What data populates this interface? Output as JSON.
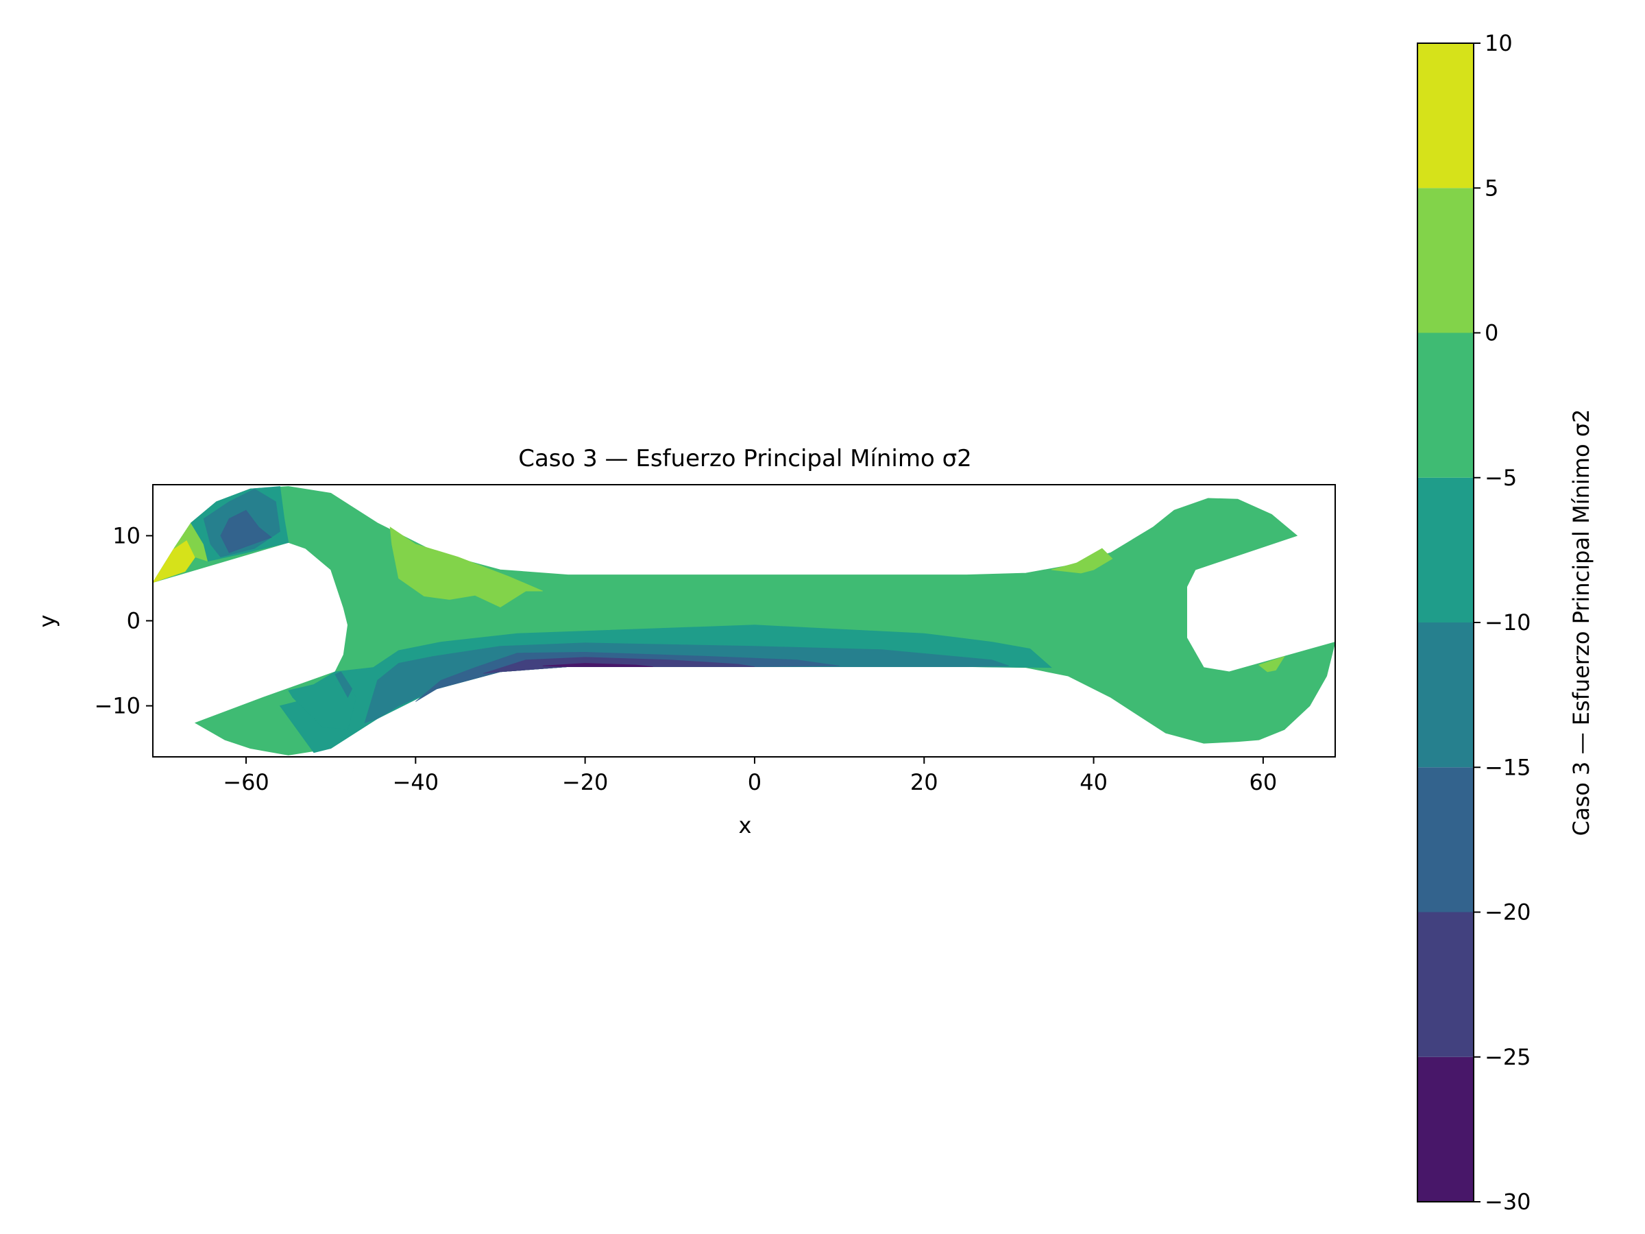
{
  "chart_data": {
    "type": "contourf",
    "title": "Caso 3 — Esfuerzo Principal Mínimo σ2",
    "xlabel": "x",
    "ylabel": "y",
    "xlim": [
      -71,
      68.5
    ],
    "ylim": [
      -16,
      16
    ],
    "xticks": [
      -60,
      -40,
      -20,
      0,
      20,
      40,
      60
    ],
    "xtick_labels": [
      "−60",
      "−40",
      "−20",
      "0",
      "20",
      "40",
      "60"
    ],
    "yticks": [
      10,
      0,
      -10
    ],
    "ytick_labels": [
      "10",
      "0",
      "−10"
    ],
    "grid": false,
    "colorbar": {
      "label": "Caso 3 — Esfuerzo Principal Mínimo σ2",
      "levels": [
        -30,
        -25,
        -20,
        -15,
        -10,
        -5,
        0,
        5,
        10
      ],
      "tick_labels": [
        "−30",
        "−25",
        "−20",
        "−15",
        "−10",
        "−5",
        "0",
        "5",
        "10"
      ],
      "colors": [
        "#481769",
        "#42417f",
        "#33638d",
        "#26808e",
        "#1f9d8a",
        "#3fbb73",
        "#82d34a",
        "#d6e21a"
      ]
    },
    "regions": [
      {
        "name": "body",
        "level_band": [
          -5,
          0
        ],
        "color": "#3fbb73",
        "outline": [
          [
            -71,
            4.5
          ],
          [
            -68.5,
            8.5
          ],
          [
            -66.5,
            11.5
          ],
          [
            -63.5,
            14
          ],
          [
            -59.5,
            15.5
          ],
          [
            -55,
            15.8
          ],
          [
            -50,
            15
          ],
          [
            -44.5,
            11.5
          ],
          [
            -37.5,
            8
          ],
          [
            -30,
            6
          ],
          [
            -22,
            5.4
          ],
          [
            0,
            5.4
          ],
          [
            25,
            5.4
          ],
          [
            32,
            5.6
          ],
          [
            37,
            6.5
          ],
          [
            42,
            8
          ],
          [
            47,
            11
          ],
          [
            49.5,
            13
          ],
          [
            53.5,
            14.4
          ],
          [
            57,
            14.3
          ],
          [
            61,
            12.5
          ],
          [
            64,
            10
          ],
          [
            52,
            6
          ],
          [
            51,
            4
          ],
          [
            51,
            -2
          ],
          [
            53,
            -5.5
          ],
          [
            56,
            -6
          ],
          [
            68.5,
            -2.5
          ],
          [
            67.5,
            -6.5
          ],
          [
            65.5,
            -10
          ],
          [
            62.5,
            -12.8
          ],
          [
            59.5,
            -14
          ],
          [
            57,
            -14.2
          ],
          [
            53,
            -14.4
          ],
          [
            48.5,
            -13.2
          ],
          [
            42,
            -9
          ],
          [
            37,
            -6.5
          ],
          [
            32,
            -5.5
          ],
          [
            25,
            -5.4
          ],
          [
            0,
            -5.4
          ],
          [
            -22,
            -5.4
          ],
          [
            -30,
            -6
          ],
          [
            -37.5,
            -8
          ],
          [
            -44.5,
            -11.5
          ],
          [
            -50,
            -15
          ],
          [
            -55,
            -15.8
          ],
          [
            -59.5,
            -15
          ],
          [
            -62.5,
            -14
          ],
          [
            -66,
            -12
          ],
          [
            -58,
            -9
          ],
          [
            -49.5,
            -6
          ],
          [
            -48.5,
            -4
          ],
          [
            -48,
            -0.5
          ],
          [
            -48.5,
            1.5
          ],
          [
            -50,
            6
          ],
          [
            -53,
            8.5
          ],
          [
            -55,
            9.2
          ]
        ]
      },
      {
        "name": "band -10 to -5 bottom",
        "level_band": [
          -10,
          -5
        ],
        "color": "#1f9d8a",
        "outline": [
          [
            -49.5,
            -6
          ],
          [
            -45,
            -5.5
          ],
          [
            -42,
            -3.5
          ],
          [
            -37,
            -2.5
          ],
          [
            -28,
            -1.5
          ],
          [
            0,
            -0.5
          ],
          [
            20,
            -1.5
          ],
          [
            28,
            -2.5
          ],
          [
            32.5,
            -3.3
          ],
          [
            35,
            -5.5
          ],
          [
            25,
            -5.4
          ],
          [
            0,
            -5.4
          ],
          [
            -22,
            -5.4
          ],
          [
            -30,
            -6
          ],
          [
            -37.5,
            -8
          ],
          [
            -44.5,
            -11.5
          ],
          [
            -50,
            -15
          ],
          [
            -52,
            -15.5
          ],
          [
            -56,
            -10
          ],
          [
            -52,
            -9
          ]
        ]
      },
      {
        "name": "band -15 to -10 bottom",
        "level_band": [
          -15,
          -10
        ],
        "color": "#26808e",
        "outline": [
          [
            -46,
            -12
          ],
          [
            -44.5,
            -7
          ],
          [
            -42,
            -5
          ],
          [
            -38,
            -4.2
          ],
          [
            -30,
            -3
          ],
          [
            -20,
            -2.6
          ],
          [
            0,
            -3
          ],
          [
            15,
            -3.4
          ],
          [
            28,
            -4.6
          ],
          [
            30,
            -5.3
          ],
          [
            25,
            -5.4
          ],
          [
            0,
            -5.4
          ],
          [
            -22,
            -5.4
          ],
          [
            -30,
            -6
          ],
          [
            -37.5,
            -8
          ],
          [
            -42,
            -10
          ],
          [
            -44.5,
            -11.5
          ]
        ]
      },
      {
        "name": "band -20 to -15 bottom",
        "level_band": [
          -20,
          -15
        ],
        "color": "#33638d",
        "outline": [
          [
            -40,
            -9.5
          ],
          [
            -37,
            -7
          ],
          [
            -33,
            -5.5
          ],
          [
            -28,
            -3.8
          ],
          [
            -20,
            -3.7
          ],
          [
            -5,
            -4.2
          ],
          [
            5,
            -4.6
          ],
          [
            10,
            -5.3
          ],
          [
            0,
            -5.4
          ],
          [
            -22,
            -5.4
          ],
          [
            -30,
            -6
          ],
          [
            -37.5,
            -8
          ]
        ]
      },
      {
        "name": "band -25 to -20 bottom",
        "level_band": [
          -25,
          -20
        ],
        "color": "#42417f",
        "outline": [
          [
            -32,
            -6.2
          ],
          [
            -27,
            -4.6
          ],
          [
            -20,
            -4.3
          ],
          [
            -10,
            -4.6
          ],
          [
            -2,
            -5.1
          ],
          [
            0,
            -5.4
          ],
          [
            -22,
            -5.4
          ],
          [
            -30,
            -6
          ]
        ]
      },
      {
        "name": "band -30 to -25 bottom",
        "level_band": [
          -30,
          -25
        ],
        "color": "#481769",
        "outline": [
          [
            -25,
            -5.3
          ],
          [
            -20,
            -5
          ],
          [
            -14,
            -5.2
          ],
          [
            -12,
            -5.4
          ],
          [
            -22,
            -5.4
          ]
        ]
      },
      {
        "name": "band 0 to 5 upper",
        "level_band": [
          0,
          5
        ],
        "color": "#82d34a",
        "outline": [
          [
            -43,
            11
          ],
          [
            -40,
            9
          ],
          [
            -35,
            7.5
          ],
          [
            -29,
            5.2
          ],
          [
            -25,
            3.5
          ],
          [
            -27,
            3.5
          ],
          [
            -30,
            1.6
          ],
          [
            -33,
            3
          ],
          [
            -36,
            2.5
          ],
          [
            -39,
            2.9
          ],
          [
            -42,
            5
          ],
          [
            -42.8,
            9
          ]
        ]
      },
      {
        "name": "band 0 to 5 right",
        "level_band": [
          0,
          5
        ],
        "color": "#82d34a",
        "outline": [
          [
            35,
            6
          ],
          [
            38,
            6.8
          ],
          [
            41,
            8.5
          ],
          [
            42.2,
            7.3
          ],
          [
            40,
            6
          ],
          [
            38.5,
            5.6
          ]
        ]
      },
      {
        "name": "band 0 to 5 right lower",
        "level_band": [
          0,
          5
        ],
        "color": "#82d34a",
        "outline": [
          [
            59.5,
            -5.2
          ],
          [
            62.5,
            -4.2
          ],
          [
            61.5,
            -5.8
          ],
          [
            60.5,
            -6
          ]
        ]
      },
      {
        "name": "band 5 to 10 left tip",
        "level_band": [
          5,
          10
        ],
        "color": "#d6e21a",
        "outline": [
          [
            -71,
            4.5
          ],
          [
            -68.5,
            8.5
          ],
          [
            -67,
            9.5
          ],
          [
            -66,
            7.5
          ],
          [
            -67.2,
            5.8
          ]
        ]
      },
      {
        "name": "band 0 to 5 left tip",
        "level_band": [
          0,
          5
        ],
        "color": "#82d34a",
        "outline": [
          [
            -68.5,
            8.5
          ],
          [
            -66.5,
            11.5
          ],
          [
            -65,
            9
          ],
          [
            -64.5,
            7
          ],
          [
            -66,
            7.5
          ],
          [
            -67,
            9.5
          ]
        ]
      },
      {
        "name": "band -10 to -5 left top",
        "level_band": [
          -10,
          -5
        ],
        "color": "#1f9d8a",
        "outline": [
          [
            -66.5,
            11.5
          ],
          [
            -63.5,
            14
          ],
          [
            -59.5,
            15.5
          ],
          [
            -56,
            15.8
          ],
          [
            -55.5,
            12
          ],
          [
            -55,
            9.2
          ],
          [
            -60,
            8
          ],
          [
            -64.5,
            7
          ],
          [
            -65,
            9
          ]
        ]
      },
      {
        "name": "band -15 to -10 left top",
        "level_band": [
          -15,
          -10
        ],
        "color": "#26808e",
        "outline": [
          [
            -65,
            12
          ],
          [
            -62,
            14
          ],
          [
            -59,
            15.5
          ],
          [
            -56.5,
            14
          ],
          [
            -56,
            10.5
          ],
          [
            -59,
            8.5
          ],
          [
            -63,
            7.5
          ],
          [
            -64.2,
            9
          ]
        ]
      },
      {
        "name": "band -20 to -15 left top",
        "level_band": [
          -20,
          -15
        ],
        "color": "#33638d",
        "outline": [
          [
            -63,
            10
          ],
          [
            -62,
            12
          ],
          [
            -60,
            13
          ],
          [
            -58.5,
            11
          ],
          [
            -57,
            9.8
          ],
          [
            -62,
            8
          ]
        ]
      },
      {
        "name": "band -10 to -5 lower left",
        "level_band": [
          -10,
          -5
        ],
        "color": "#1f9d8a",
        "outline": [
          [
            -55,
            -8.2
          ],
          [
            -54.5,
            -9
          ],
          [
            -51,
            -12.5
          ],
          [
            -48,
            -12.8
          ],
          [
            -47,
            -9
          ],
          [
            -48.5,
            -7
          ],
          [
            -49.5,
            -6
          ],
          [
            -52,
            -7.5
          ]
        ]
      },
      {
        "name": "band -15 to -10 lower left",
        "level_band": [
          -15,
          -10
        ],
        "color": "#26808e",
        "outline": [
          [
            -49.5,
            -6.3
          ],
          [
            -48,
            -9
          ],
          [
            -47.5,
            -8
          ],
          [
            -48.8,
            -6
          ]
        ]
      }
    ]
  }
}
